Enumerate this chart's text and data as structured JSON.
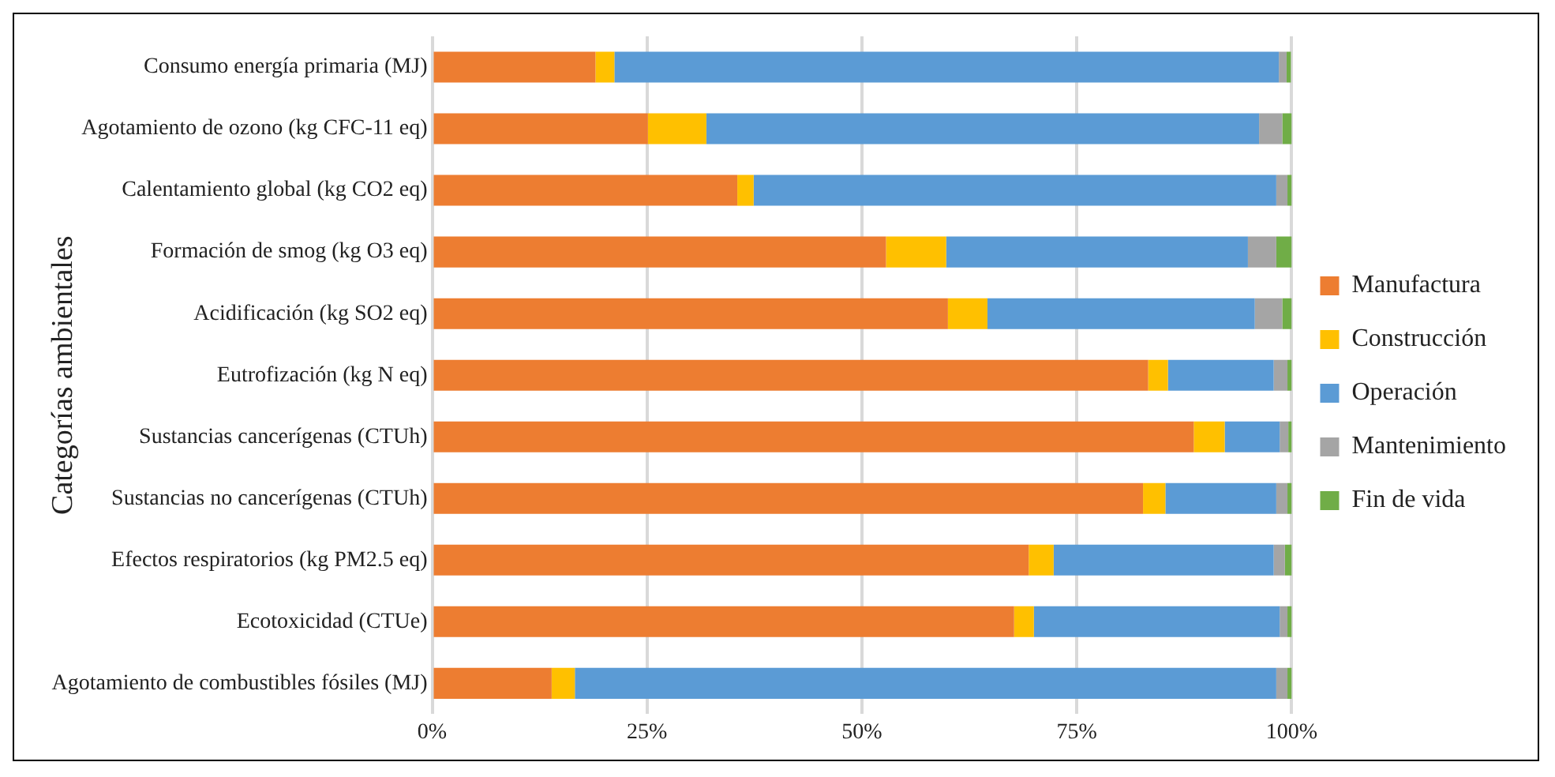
{
  "chart_data": {
    "type": "bar",
    "orientation": "horizontal",
    "stacked": true,
    "ylabel": "Categorías ambientales",
    "categories": [
      "Consumo energía primaria (MJ)",
      "Agotamiento de ozono (kg CFC-11 eq)",
      "Calentamiento global (kg CO2 eq)",
      "Formación de smog (kg O3 eq)",
      "Acidificación (kg SO2 eq)",
      "Eutrofización (kg N eq)",
      "Sustancias cancerígenas (CTUh)",
      "Sustancias no cancerígenas (CTUh)",
      "Efectos respiratorios (kg PM2.5 eq)",
      "Ecotoxicidad (CTUe)",
      "Agotamiento de combustibles fósiles (MJ)"
    ],
    "series": [
      {
        "name": "Manufactura",
        "color": "#ed7d31",
        "values": [
          19.0,
          25.1,
          35.5,
          52.8,
          60.0,
          83.3,
          88.6,
          82.7,
          69.4,
          67.7,
          13.9
        ]
      },
      {
        "name": "Construcción",
        "color": "#ffc000",
        "values": [
          2.2,
          6.8,
          1.9,
          7.0,
          4.6,
          2.3,
          3.6,
          2.6,
          2.9,
          2.3,
          2.7
        ]
      },
      {
        "name": "Operación",
        "color": "#5b9bd5",
        "values": [
          77.3,
          64.3,
          60.8,
          35.1,
          31.1,
          12.3,
          6.4,
          12.9,
          25.6,
          28.6,
          81.6
        ]
      },
      {
        "name": "Mantenimiento",
        "color": "#a5a5a5",
        "values": [
          0.9,
          2.7,
          1.3,
          3.3,
          3.2,
          1.6,
          1.0,
          1.3,
          1.3,
          0.9,
          1.3
        ]
      },
      {
        "name": "Fin de vida",
        "color": "#70ad47",
        "values": [
          0.5,
          1.1,
          0.5,
          1.8,
          1.1,
          0.5,
          0.4,
          0.5,
          0.8,
          0.5,
          0.5
        ]
      }
    ],
    "xlim": [
      0,
      100
    ],
    "xticks": [
      {
        "value": 0,
        "label": "0%"
      },
      {
        "value": 25,
        "label": "25%"
      },
      {
        "value": 50,
        "label": "50%"
      },
      {
        "value": 75,
        "label": "75%"
      },
      {
        "value": 100,
        "label": "100%"
      }
    ],
    "grid": "x",
    "legend": "right"
  }
}
